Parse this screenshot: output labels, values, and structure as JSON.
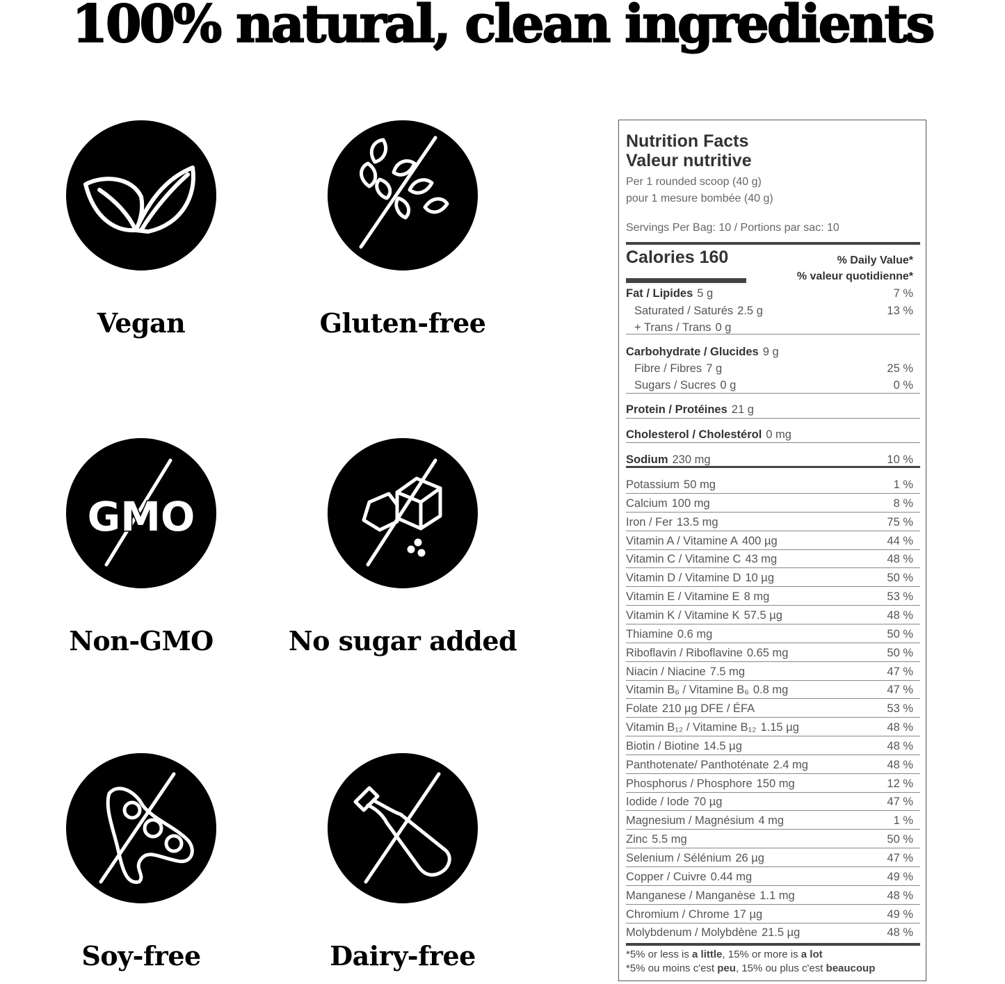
{
  "headline": "100% natural, clean ingredients",
  "badges": [
    {
      "label": "Vegan",
      "icon": "leaf-icon"
    },
    {
      "label": "Gluten-free",
      "icon": "wheat-crossed-icon"
    },
    {
      "label": "Non-GMO",
      "icon": "gmo-crossed-icon",
      "icon_text": "GMO"
    },
    {
      "label": "No sugar added",
      "icon": "sugar-cube-crossed-icon"
    },
    {
      "label": "Soy-free",
      "icon": "soybean-crossed-icon"
    },
    {
      "label": "Dairy-free",
      "icon": "milk-bottle-crossed-icon"
    }
  ],
  "nutrition": {
    "title_en": "Nutrition Facts",
    "title_fr": "Valeur nutritive",
    "serving_en": "Per 1 rounded scoop (40 g)",
    "serving_fr": "pour 1 mesure bombée (40 g)",
    "servings": "Servings Per Bag: 10 / Portions par sac: 10",
    "calories": "Calories 160",
    "dv_en": "% Daily Value*",
    "dv_fr": "% valeur quotidienne*",
    "macros": [
      {
        "name": "Fat / Lipides",
        "amount": "5 g",
        "dv": "7 %",
        "bold": true
      },
      {
        "name": "Saturated / Saturés",
        "amount": "2.5 g",
        "dv": "13 %",
        "indent": true
      },
      {
        "name": "+ Trans / Trans",
        "amount": "0 g",
        "dv": "",
        "indent": true
      },
      {
        "name": "Carbohydrate / Glucides",
        "amount": "9 g",
        "dv": "",
        "bold": true
      },
      {
        "name": "Fibre / Fibres",
        "amount": "7 g",
        "dv": "25 %",
        "indent": true
      },
      {
        "name": "Sugars / Sucres",
        "amount": "0 g",
        "dv": "0 %",
        "indent": true
      },
      {
        "name": "Protein / Protéines",
        "amount": "21 g",
        "dv": "",
        "bold": true
      },
      {
        "name": "Cholesterol / Cholestérol",
        "amount": "0 mg",
        "dv": "",
        "bold": true
      },
      {
        "name": "Sodium",
        "amount": "230 mg",
        "dv": "10 %",
        "bold": true
      }
    ],
    "micros": [
      {
        "name": "Potassium",
        "amount": "50 mg",
        "dv": "1 %"
      },
      {
        "name": "Calcium",
        "amount": "100 mg",
        "dv": "8 %"
      },
      {
        "name": "Iron / Fer",
        "amount": "13.5 mg",
        "dv": "75 %"
      },
      {
        "name": "Vitamin A / Vitamine A",
        "amount": "400 µg",
        "dv": "44 %"
      },
      {
        "name": "Vitamin C / Vitamine C",
        "amount": "43 mg",
        "dv": "48 %"
      },
      {
        "name": "Vitamin D / Vitamine D",
        "amount": "10 µg",
        "dv": "50 %"
      },
      {
        "name": "Vitamin E / Vitamine E",
        "amount": "8 mg",
        "dv": "53 %"
      },
      {
        "name": "Vitamin K / Vitamine K",
        "amount": "57.5 µg",
        "dv": "48 %"
      },
      {
        "name": "Thiamine",
        "amount": "0.6 mg",
        "dv": "50 %"
      },
      {
        "name": "Riboflavin / Riboflavine",
        "amount": "0.65 mg",
        "dv": "50 %"
      },
      {
        "name": "Niacin / Niacine",
        "amount": "7.5 mg",
        "dv": "47 %"
      },
      {
        "name": "Vitamin B₆ / Vitamine B₆",
        "amount": "0.8 mg",
        "dv": "47 %"
      },
      {
        "name": "Folate",
        "amount": "210 µg DFE / ÉFA",
        "dv": "53 %"
      },
      {
        "name": "Vitamin B₁₂ / Vitamine B₁₂",
        "amount": "1.15 µg",
        "dv": "48 %"
      },
      {
        "name": "Biotin / Biotine",
        "amount": "14.5 µg",
        "dv": "48 %"
      },
      {
        "name": "Panthotenate/ Panthoténate",
        "amount": "2.4 mg",
        "dv": "48 %"
      },
      {
        "name": "Phosphorus / Phosphore",
        "amount": "150 mg",
        "dv": "12 %"
      },
      {
        "name": "Iodide / Iode",
        "amount": "70 µg",
        "dv": "47 %"
      },
      {
        "name": "Magnesium / Magnésium",
        "amount": "4 mg",
        "dv": "1 %"
      },
      {
        "name": "Zinc",
        "amount": "5.5 mg",
        "dv": "50 %"
      },
      {
        "name": "Selenium / Sélénium",
        "amount": "26 µg",
        "dv": "47 %"
      },
      {
        "name": "Copper / Cuivre",
        "amount": "0.44 mg",
        "dv": "49 %"
      },
      {
        "name": "Manganese / Manganèse",
        "amount": "1.1 mg",
        "dv": "48 %"
      },
      {
        "name": "Chromium / Chrome",
        "amount": "17 µg",
        "dv": "49 %"
      },
      {
        "name": "Molybdenum / Molybdène",
        "amount": "21.5 µg",
        "dv": "48 %"
      }
    ],
    "footnote_en": {
      "a": "*5% or less is ",
      "b": "a little",
      "c": ", 15% or more is ",
      "d": "a lot"
    },
    "footnote_fr": {
      "a": "*5% ou moins c'est ",
      "b": "peu",
      "c": ", 15% ou plus c'est ",
      "d": "beaucoup"
    }
  }
}
